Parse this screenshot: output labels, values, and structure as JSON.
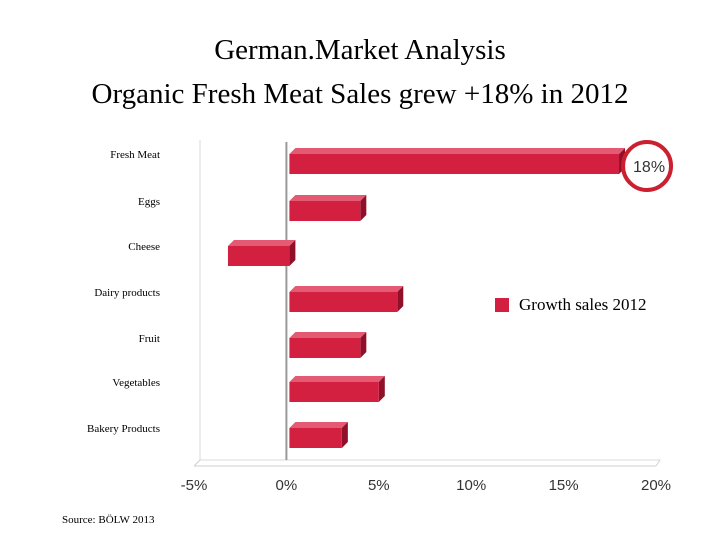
{
  "title_line1": "German.Market Analysis",
  "title_line2": "Organic Fresh Meat Sales grew +18% in 2012",
  "source": "Source: BÖLW 2013",
  "chart_data": {
    "type": "bar",
    "orientation": "horizontal",
    "categories": [
      "Fresh Meat",
      "Eggs",
      "Cheese",
      "Dairy products",
      "Fruit",
      "Vegetables",
      "Bakery Products"
    ],
    "series": [
      {
        "name": "Growth sales 2012",
        "values": [
          18,
          4,
          -3,
          6,
          4,
          5,
          3
        ]
      }
    ],
    "xlim": [
      -5,
      20
    ],
    "xticks": [
      -5,
      0,
      5,
      10,
      15,
      20
    ],
    "tick_labels": [
      "-5%",
      "0%",
      "5%",
      "10%",
      "15%",
      "20%"
    ],
    "highlight_label": "18%",
    "legend_position": "right",
    "bar_color": "#d42040"
  }
}
